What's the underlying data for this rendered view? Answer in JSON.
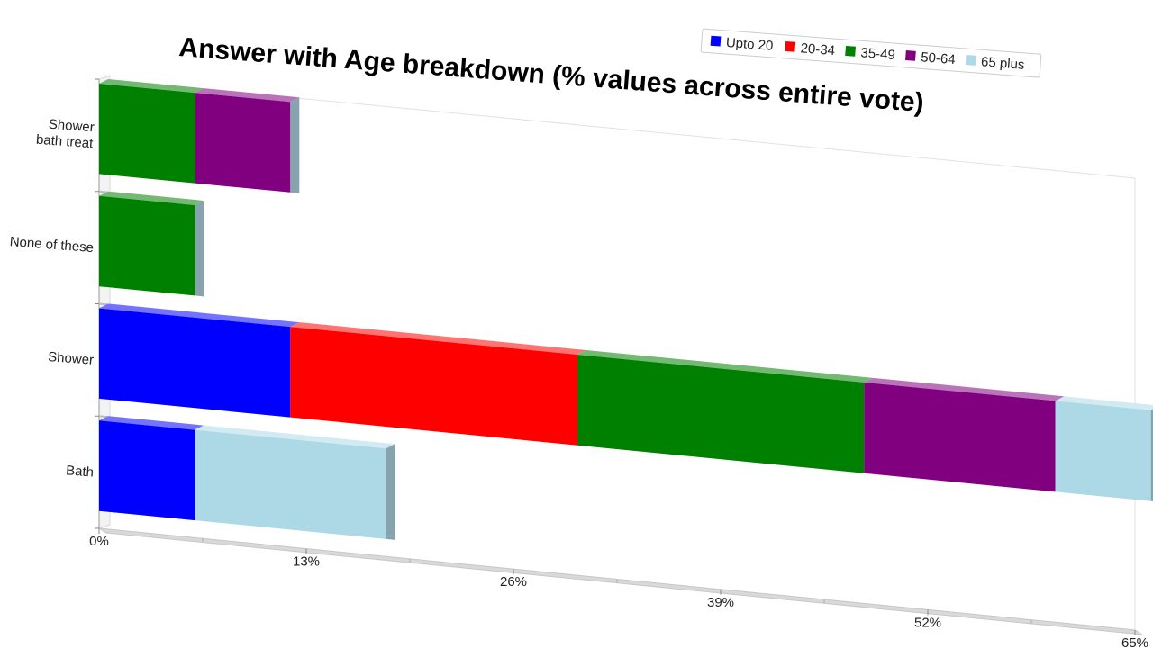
{
  "chart_data": {
    "type": "bar",
    "stacked": true,
    "orientation": "horizontal",
    "title": "Answer with Age breakdown (% values across entire vote)",
    "xlabel": "",
    "ylabel": "",
    "xlim": [
      0,
      65
    ],
    "x_tick_labels": [
      "0%",
      "13%",
      "26%",
      "39%",
      "52%",
      "65%"
    ],
    "categories": [
      "Shower bath treat",
      "None of these",
      "Shower",
      "Bath"
    ],
    "category_lines": [
      [
        "Shower",
        "bath treat"
      ],
      [
        "None of these"
      ],
      [
        "Shower"
      ],
      [
        "Bath"
      ]
    ],
    "series": [
      {
        "name": "Upto 20",
        "color": "#0000ff",
        "values": [
          0,
          0,
          12,
          6
        ]
      },
      {
        "name": "20-34",
        "color": "#ff0000",
        "values": [
          0,
          0,
          18,
          0
        ]
      },
      {
        "name": "35-49",
        "color": "#008000",
        "values": [
          6,
          6,
          18,
          0
        ]
      },
      {
        "name": "50-64",
        "color": "#800080",
        "values": [
          6,
          0,
          12,
          0
        ]
      },
      {
        "name": "65 plus",
        "color": "#add8e6",
        "values": [
          0,
          0,
          6,
          12
        ]
      }
    ],
    "legend_position": "top-right",
    "grid": false,
    "style": "3d-perspective"
  }
}
